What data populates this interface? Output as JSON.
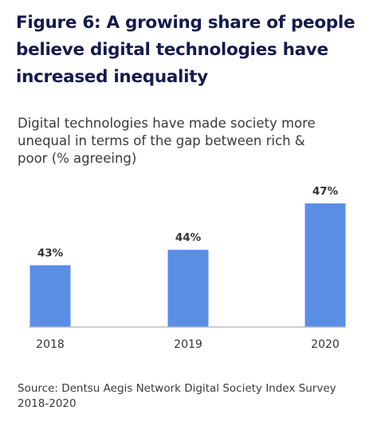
{
  "title": "Figure 6: A growing share of people believe digital technologies have increased inequality",
  "subtitle": "Digital technologies have made society more unequal in terms of the gap between rich & poor (% agreeing)",
  "source": "Source: Dentsu Aegis Network Digital Society Index Survey 2018-2020",
  "colors": {
    "bar": "#5b8ee6",
    "baseline": "#bdbdbd",
    "label": "#333333",
    "title": "#141b4d"
  },
  "chart_data": {
    "type": "bar",
    "categories": [
      "2018",
      "2019",
      "2020"
    ],
    "values": [
      43,
      44,
      47
    ],
    "value_labels": [
      "43%",
      "44%",
      "47%"
    ],
    "ylim": [
      39,
      47
    ],
    "grid": false
  }
}
